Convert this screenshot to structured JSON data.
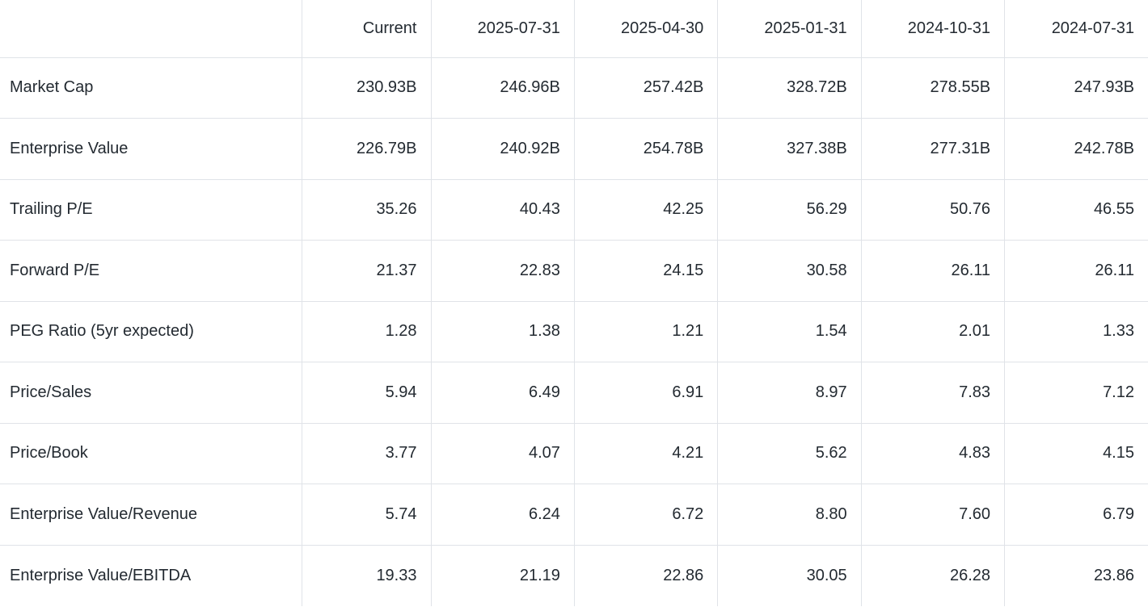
{
  "colors": {
    "text": "#232a31",
    "grid_border": "#e0e3e8",
    "background": "#ffffff"
  },
  "chart_data": {
    "type": "table",
    "columns": [
      "",
      "Current",
      "2025-07-31",
      "2025-04-30",
      "2025-01-31",
      "2024-10-31",
      "2024-07-31"
    ],
    "rows": [
      {
        "label": "Market Cap",
        "values": [
          "230.93B",
          "246.96B",
          "257.42B",
          "328.72B",
          "278.55B",
          "247.93B"
        ]
      },
      {
        "label": "Enterprise Value",
        "values": [
          "226.79B",
          "240.92B",
          "254.78B",
          "327.38B",
          "277.31B",
          "242.78B"
        ]
      },
      {
        "label": "Trailing P/E",
        "values": [
          "35.26",
          "40.43",
          "42.25",
          "56.29",
          "50.76",
          "46.55"
        ]
      },
      {
        "label": "Forward P/E",
        "values": [
          "21.37",
          "22.83",
          "24.15",
          "30.58",
          "26.11",
          "26.11"
        ]
      },
      {
        "label": "PEG Ratio (5yr expected)",
        "values": [
          "1.28",
          "1.38",
          "1.21",
          "1.54",
          "2.01",
          "1.33"
        ]
      },
      {
        "label": "Price/Sales",
        "values": [
          "5.94",
          "6.49",
          "6.91",
          "8.97",
          "7.83",
          "7.12"
        ]
      },
      {
        "label": "Price/Book",
        "values": [
          "3.77",
          "4.07",
          "4.21",
          "5.62",
          "4.83",
          "4.15"
        ]
      },
      {
        "label": "Enterprise Value/Revenue",
        "values": [
          "5.74",
          "6.24",
          "6.72",
          "8.80",
          "7.60",
          "6.79"
        ]
      },
      {
        "label": "Enterprise Value/EBITDA",
        "values": [
          "19.33",
          "21.19",
          "22.86",
          "30.05",
          "26.28",
          "23.86"
        ]
      }
    ]
  }
}
